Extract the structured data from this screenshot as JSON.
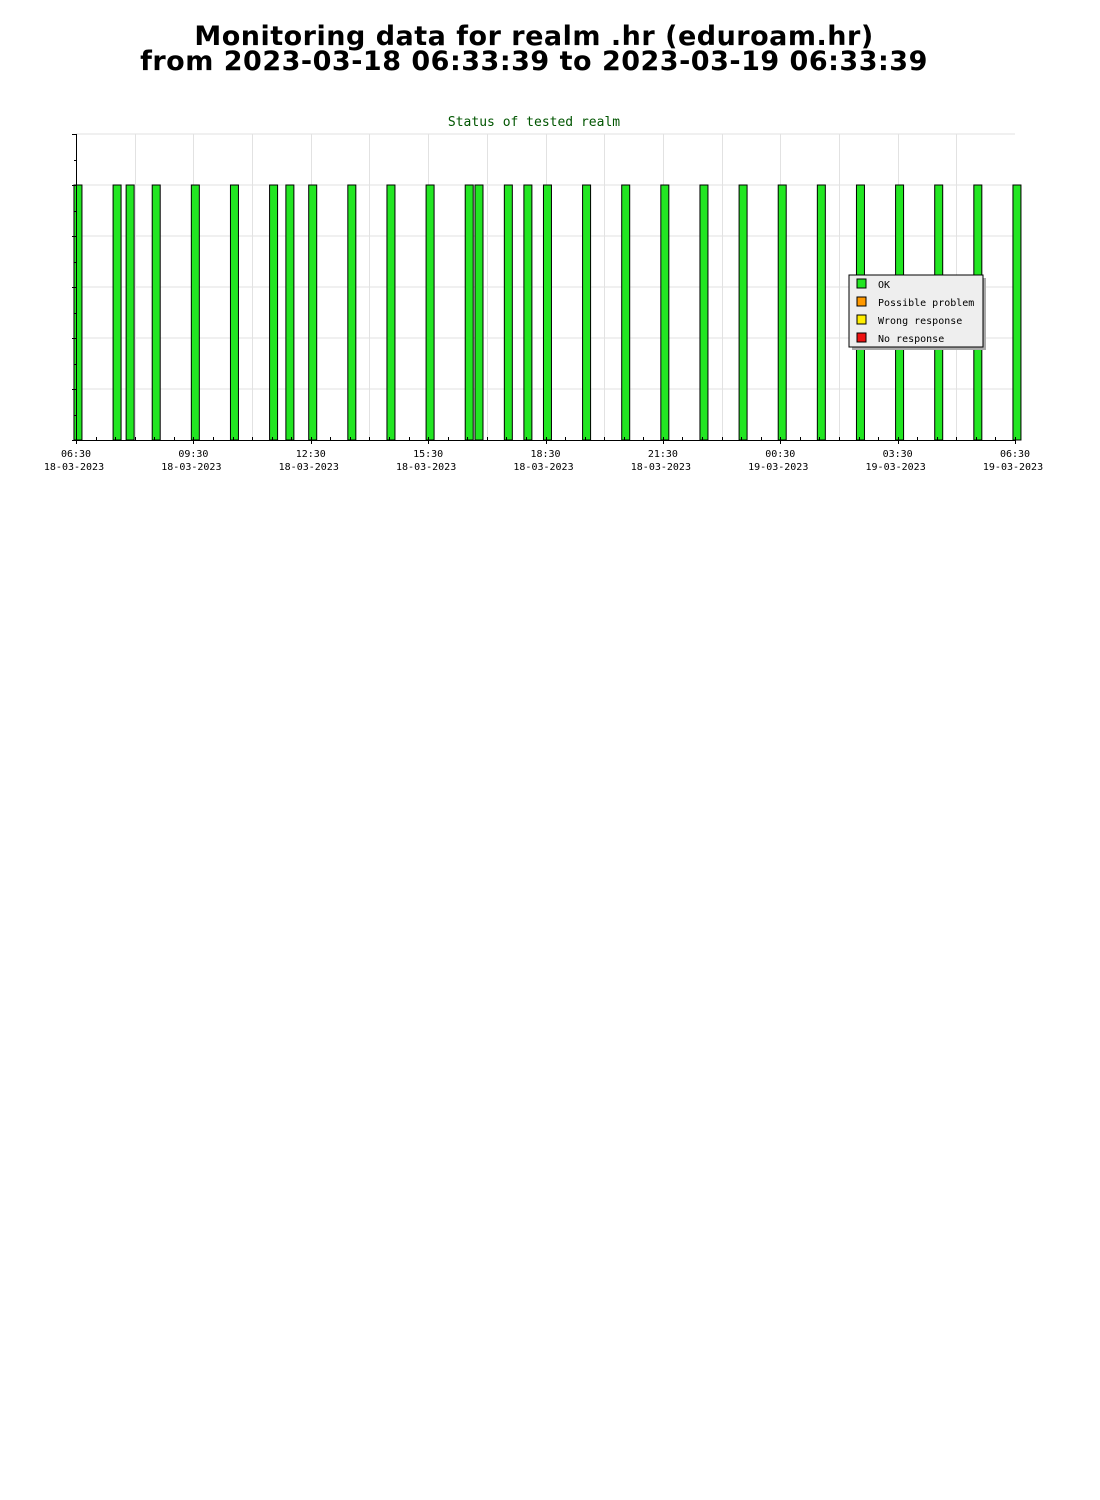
{
  "page": {
    "title_line1": "Monitoring data for realm .hr  (eduroam.hr)",
    "title_line2": "from 2023-03-18 06:33:39 to 2023-03-19 06:33:39"
  },
  "chart_data": {
    "type": "bar",
    "title": "Status of tested realm",
    "xlabel": "",
    "ylabel": "",
    "x_unit": "time",
    "x_range": [
      "2023-03-18 06:30",
      "2023-03-19 06:30"
    ],
    "y_range": [
      0,
      6
    ],
    "grid": true,
    "legend_placement": "right",
    "x_ticks": [
      {
        "time": "06:30",
        "date": "18-03-2023"
      },
      {
        "time": "09:30",
        "date": "18-03-2023"
      },
      {
        "time": "12:30",
        "date": "18-03-2023"
      },
      {
        "time": "15:30",
        "date": "18-03-2023"
      },
      {
        "time": "18:30",
        "date": "18-03-2023"
      },
      {
        "time": "21:30",
        "date": "18-03-2023"
      },
      {
        "time": "00:30",
        "date": "19-03-2023"
      },
      {
        "time": "03:30",
        "date": "19-03-2023"
      },
      {
        "time": "06:30",
        "date": "19-03-2023"
      }
    ],
    "legend": [
      {
        "label": "OK",
        "color": "#22e622"
      },
      {
        "label": "Possible problem",
        "color": "#ff9900"
      },
      {
        "label": "Wrong response",
        "color": "#ffee00"
      },
      {
        "label": "No response",
        "color": "#ee1111"
      }
    ],
    "series": [
      {
        "status": "OK",
        "color": "#22e622",
        "value": 5,
        "times": [
          "2023-03-18 06:33",
          "2023-03-18 07:33",
          "2023-03-18 07:53",
          "2023-03-18 08:33",
          "2023-03-18 09:33",
          "2023-03-18 10:33",
          "2023-03-18 11:33",
          "2023-03-18 11:58",
          "2023-03-18 12:33",
          "2023-03-18 13:33",
          "2023-03-18 14:33",
          "2023-03-18 15:33",
          "2023-03-18 16:33",
          "2023-03-18 16:48",
          "2023-03-18 17:33",
          "2023-03-18 18:03",
          "2023-03-18 18:33",
          "2023-03-18 19:33",
          "2023-03-18 20:33",
          "2023-03-18 21:33",
          "2023-03-18 22:33",
          "2023-03-18 23:33",
          "2023-03-19 00:33",
          "2023-03-19 01:33",
          "2023-03-19 02:33",
          "2023-03-19 03:33",
          "2023-03-19 04:33",
          "2023-03-19 05:33",
          "2023-03-19 06:33"
        ]
      }
    ]
  }
}
